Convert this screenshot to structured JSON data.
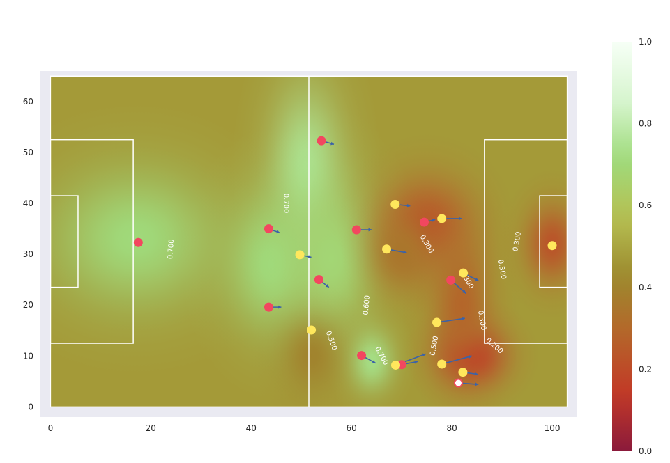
{
  "chart_data": {
    "type": "scatter",
    "title": "",
    "xlabel": "",
    "ylabel": "",
    "xlim": [
      -2,
      105
    ],
    "ylim": [
      -2,
      66
    ],
    "xticks": [
      0,
      20,
      40,
      60,
      80,
      100
    ],
    "yticks": [
      0,
      10,
      20,
      30,
      40,
      50,
      60
    ],
    "pitch": {
      "length": 103,
      "width": 65,
      "halfway_x": 51.5,
      "penalty_box": {
        "depth": 16.5,
        "y": [
          12.5,
          52.5
        ]
      },
      "goal_area": {
        "depth": 5.5,
        "y": [
          23.5,
          41.5
        ]
      }
    },
    "surface": {
      "description": "pitch control probability field",
      "colormap": [
        "#8b1a3b",
        "#c23a27",
        "#b5652a",
        "#9c8a2e",
        "#b6c052",
        "#9fdb7c",
        "#d8f5d0",
        "#f6fff6"
      ],
      "base_value": 0.47,
      "bumps": [
        {
          "x": 17,
          "y": 33,
          "sx": 11,
          "sy": 9,
          "a": 0.24
        },
        {
          "x": 51,
          "y": 47,
          "sx": 5,
          "sy": 11,
          "a": 0.28
        },
        {
          "x": 44,
          "y": 28,
          "sx": 6,
          "sy": 9,
          "a": 0.24
        },
        {
          "x": 56,
          "y": 29,
          "sx": 6,
          "sy": 10,
          "a": 0.22
        },
        {
          "x": 64,
          "y": 9,
          "sx": 3,
          "sy": 4,
          "a": 0.26
        },
        {
          "x": 75,
          "y": 36,
          "sx": 6,
          "sy": 6,
          "a": -0.23
        },
        {
          "x": 70,
          "y": 30,
          "sx": 4,
          "sy": 5,
          "a": -0.12
        },
        {
          "x": 84,
          "y": 10,
          "sx": 4.5,
          "sy": 4,
          "a": -0.33
        },
        {
          "x": 82,
          "y": 20,
          "sx": 4,
          "sy": 9,
          "a": -0.18
        },
        {
          "x": 100,
          "y": 32,
          "sx": 3.5,
          "sy": 5,
          "a": -0.24
        },
        {
          "x": 52,
          "y": 10,
          "sx": 4,
          "sy": 5,
          "a": -0.07
        }
      ]
    },
    "contour_labels": [
      {
        "x": 47,
        "y": 40,
        "text": "0.700",
        "rot": 90
      },
      {
        "x": 24,
        "y": 31,
        "text": "0.700",
        "rot": -85
      },
      {
        "x": 75,
        "y": 32,
        "text": "0.300",
        "rot": 60
      },
      {
        "x": 93,
        "y": 32.5,
        "text": "0.300",
        "rot": -80
      },
      {
        "x": 90,
        "y": 27,
        "text": "0.300",
        "rot": 80
      },
      {
        "x": 83,
        "y": 25,
        "text": "0.300",
        "rot": 60
      },
      {
        "x": 86,
        "y": 17,
        "text": "0.300",
        "rot": 80
      },
      {
        "x": 88.5,
        "y": 12,
        "text": "0.200",
        "rot": 40
      },
      {
        "x": 63,
        "y": 20,
        "text": "0.600",
        "rot": -85
      },
      {
        "x": 56,
        "y": 13,
        "text": "0.500",
        "rot": 70
      },
      {
        "x": 66,
        "y": 10,
        "text": "0.700",
        "rot": 60
      },
      {
        "x": 76.5,
        "y": 12,
        "text": "0.500",
        "rot": -80
      }
    ],
    "series": [
      {
        "team": "red",
        "color": "#f2475f",
        "players": [
          {
            "x": 17.5,
            "y": 32.3,
            "vx": 0,
            "vy": 0
          },
          {
            "x": 54,
            "y": 52.3,
            "vx": 2.5,
            "vy": -0.7
          },
          {
            "x": 43.5,
            "y": 35,
            "vx": 2.2,
            "vy": -0.8
          },
          {
            "x": 61,
            "y": 34.8,
            "vx": 3,
            "vy": 0
          },
          {
            "x": 53.5,
            "y": 25,
            "vx": 2,
            "vy": -1.5
          },
          {
            "x": 43.5,
            "y": 19.6,
            "vx": 2.5,
            "vy": 0
          },
          {
            "x": 74.5,
            "y": 36.3,
            "vx": 2.2,
            "vy": 0.5
          },
          {
            "x": 79.8,
            "y": 24.9,
            "vx": 3,
            "vy": -2.6
          },
          {
            "x": 62,
            "y": 10.1,
            "vx": 2.8,
            "vy": -1.5
          },
          {
            "x": 70,
            "y": 8.3,
            "vx": 3.2,
            "vy": 0.6
          }
        ]
      },
      {
        "team": "yellow",
        "color": "#ffe75c",
        "players": [
          {
            "x": 100,
            "y": 31.7,
            "vx": 0,
            "vy": 0
          },
          {
            "x": 68.7,
            "y": 39.8,
            "vx": 3,
            "vy": -0.3
          },
          {
            "x": 78,
            "y": 37,
            "vx": 4,
            "vy": 0
          },
          {
            "x": 67,
            "y": 31,
            "vx": 4,
            "vy": -0.7
          },
          {
            "x": 49.7,
            "y": 29.9,
            "vx": 2.3,
            "vy": -0.5
          },
          {
            "x": 82.3,
            "y": 26.3,
            "vx": 3,
            "vy": -1.5
          },
          {
            "x": 77,
            "y": 16.6,
            "vx": 5.6,
            "vy": 0.8
          },
          {
            "x": 52,
            "y": 15.1,
            "vx": 0,
            "vy": 0
          },
          {
            "x": 68.8,
            "y": 8.2,
            "vx": 6,
            "vy": 2.2
          },
          {
            "x": 78,
            "y": 8.4,
            "vx": 6,
            "vy": 1.6
          },
          {
            "x": 82.2,
            "y": 6.8,
            "vx": 3,
            "vy": -0.4
          }
        ]
      }
    ],
    "ball": {
      "x": 81.3,
      "y": 4.7,
      "vx": 4,
      "vy": -0.3,
      "color": "#ffffff",
      "edge": "#f2475f"
    },
    "arrow_color": "#3b62a8",
    "colorbar": {
      "range": [
        0,
        1
      ],
      "ticks": [
        "0.0",
        "0.2",
        "0.4",
        "0.6",
        "0.8",
        "1.0"
      ]
    }
  }
}
